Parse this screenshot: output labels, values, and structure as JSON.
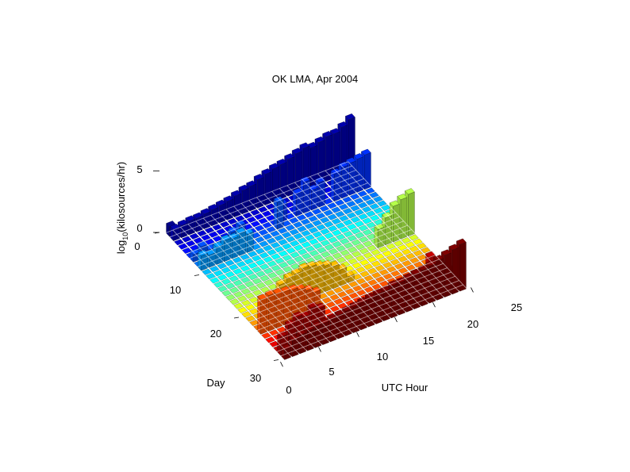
{
  "chart_data": {
    "type": "bar3",
    "title": "OK LMA, Apr 2004",
    "xlabel": "UTC Hour",
    "ylabel": "Day",
    "zlabel_main": "log",
    "zlabel_sub": "10",
    "zlabel_rest": "(kilosources/hr)",
    "x_ticks": [
      "0",
      "5",
      "10",
      "15",
      "20",
      "25"
    ],
    "y_ticks": [
      "0",
      "10",
      "20",
      "30"
    ],
    "z_ticks": [
      "0",
      "5"
    ],
    "xlim": [
      0,
      25
    ],
    "ylim": [
      0,
      30
    ],
    "zlim": [
      0,
      5
    ],
    "hours": [
      1,
      2,
      3,
      4,
      5,
      6,
      7,
      8,
      9,
      10,
      11,
      12,
      13,
      14,
      15,
      16,
      17,
      18,
      19,
      20,
      21,
      22,
      23,
      24
    ],
    "days": [
      1,
      2,
      3,
      4,
      5,
      6,
      7,
      8,
      9,
      10,
      11,
      12,
      13,
      14,
      15,
      16,
      17,
      18,
      19,
      20,
      21,
      22,
      23,
      24,
      25,
      26,
      27,
      28,
      29,
      30
    ],
    "rows": [
      [
        0.8,
        0,
        0,
        0,
        0,
        0,
        0,
        0,
        0,
        0,
        0,
        0,
        0,
        0,
        0,
        0,
        0,
        0,
        0,
        0,
        0,
        0,
        0,
        0
      ],
      [
        0.9,
        1.0,
        1.1,
        1.1,
        1.2,
        1.3,
        1.4,
        1.5,
        1.7,
        1.9,
        2.0,
        2.3,
        2.5,
        2.7,
        2.8,
        3.0,
        3.2,
        3.4,
        3.2,
        3.4,
        3.6,
        3.6,
        3.9,
        4.3
      ],
      [
        0,
        0,
        0,
        0,
        0,
        0,
        0,
        0,
        0,
        0,
        0,
        0,
        0,
        0,
        0,
        0,
        0,
        0,
        0,
        0,
        0,
        0,
        0,
        0
      ],
      [
        0,
        0,
        0,
        0,
        0,
        0,
        0,
        0,
        0,
        0,
        0,
        0,
        0,
        0,
        0,
        0,
        0,
        0,
        0,
        0,
        0,
        0,
        0,
        0
      ],
      [
        0,
        0,
        0,
        0,
        0,
        0,
        0,
        0,
        0,
        0,
        0,
        0,
        0,
        0,
        0,
        0,
        0,
        0,
        0,
        0,
        0,
        0,
        0,
        0
      ],
      [
        0,
        0,
        0,
        0,
        0,
        0,
        0,
        0,
        0,
        0,
        0,
        0,
        1.4,
        0,
        1.8,
        2.5,
        1.6,
        2.0,
        0,
        2.2,
        2.5,
        2.6,
        2.7,
        2.8
      ],
      [
        0.6,
        1.0,
        0.5,
        0.3,
        0.8,
        1.2,
        1.5,
        0,
        0,
        0,
        0,
        2.2,
        0,
        0,
        0,
        0,
        0,
        0,
        0,
        0,
        0,
        0,
        0,
        0
      ],
      [
        0,
        0,
        0,
        0,
        0,
        0,
        0,
        0,
        0,
        0,
        0,
        0,
        0,
        0,
        0,
        0,
        0,
        0,
        0,
        0,
        0,
        0,
        0,
        0
      ],
      [
        1.2,
        1.0,
        1.4,
        1.7,
        1.6,
        1.8,
        1.5,
        0,
        0,
        0,
        0,
        0,
        0,
        0,
        0,
        0,
        0,
        0,
        0,
        0,
        0,
        0,
        0,
        0
      ],
      [
        0,
        0,
        0,
        0,
        0,
        0,
        0,
        0,
        0,
        0,
        0,
        0,
        0,
        0,
        0,
        0,
        0,
        0,
        0,
        0,
        0,
        0,
        0,
        0
      ],
      [
        0,
        0,
        0,
        0,
        0,
        0,
        0,
        0,
        0,
        0,
        0,
        0,
        0,
        0,
        0,
        0,
        0,
        0,
        0,
        0,
        0,
        0,
        0,
        0
      ],
      [
        0,
        0,
        0,
        0,
        0,
        0,
        0,
        0,
        0,
        0,
        0,
        0,
        0,
        0,
        0,
        0,
        0,
        0,
        0,
        0,
        0,
        0,
        0,
        0
      ],
      [
        0,
        0,
        0,
        0,
        0,
        0,
        0,
        0,
        0,
        0,
        0,
        0,
        0,
        0,
        0,
        0,
        0,
        0,
        0,
        0,
        0,
        0,
        0,
        0
      ],
      [
        0,
        0,
        0,
        0,
        0,
        0,
        0,
        0,
        0,
        0,
        0,
        0,
        0,
        0,
        0,
        0,
        0,
        0,
        0,
        0,
        0,
        0,
        0,
        0
      ],
      [
        0,
        0,
        0,
        0,
        0,
        0,
        0,
        0,
        0,
        0,
        0,
        0,
        0,
        0,
        0,
        0,
        0,
        0,
        0,
        0,
        0,
        0,
        0,
        0
      ],
      [
        0,
        0,
        0,
        0,
        0,
        0,
        0,
        0,
        0,
        0,
        0,
        0,
        0,
        0,
        0,
        0,
        0,
        0,
        0,
        0,
        0,
        0,
        0,
        0
      ],
      [
        0,
        0,
        0,
        0,
        0,
        0,
        0,
        0,
        0,
        0,
        0,
        0,
        0,
        0,
        0,
        0,
        0,
        0,
        0,
        1.5,
        2.2,
        2.9,
        3.2,
        3.4
      ],
      [
        0,
        0,
        0,
        0,
        0,
        0,
        0,
        0,
        0,
        0,
        0,
        0,
        0,
        0,
        0,
        0,
        0,
        0,
        0,
        0,
        0,
        0,
        0,
        0
      ],
      [
        0,
        0,
        0,
        0,
        0,
        0,
        0,
        0,
        0,
        0,
        0,
        0,
        0,
        0,
        0,
        0,
        0,
        0,
        0,
        0,
        0,
        0,
        0,
        0
      ],
      [
        0,
        0,
        0,
        0,
        0,
        0,
        0,
        0,
        0,
        0,
        0,
        0,
        0,
        0,
        0,
        0,
        0,
        0,
        0,
        0,
        0,
        0,
        0,
        0
      ],
      [
        0,
        0,
        0,
        0,
        2.0,
        2.3,
        2.4,
        2.6,
        2.5,
        2.3,
        2.1,
        1.8,
        1.3,
        0.5,
        0,
        0,
        0,
        0,
        0,
        0,
        0,
        0,
        0,
        0
      ],
      [
        0,
        0,
        0,
        0,
        0,
        0,
        0,
        0,
        0,
        0,
        0,
        0,
        0,
        0,
        0,
        0,
        0,
        0,
        0,
        0,
        0,
        0,
        0,
        0
      ],
      [
        0,
        0,
        0,
        0,
        0,
        0,
        0,
        0,
        0,
        0,
        0,
        0,
        0,
        0,
        0,
        0,
        0,
        0,
        0,
        0,
        0,
        0,
        0,
        0
      ],
      [
        2.8,
        2.9,
        2.8,
        2.7,
        2.6,
        2.4,
        2.1,
        1.7,
        0,
        0,
        0,
        0,
        0,
        0,
        0,
        0,
        0,
        0,
        0,
        0,
        0,
        0,
        0,
        0
      ],
      [
        0,
        0,
        0,
        0,
        0,
        0,
        0,
        0,
        0,
        0,
        0,
        0,
        0,
        0,
        0,
        0,
        0,
        0,
        0,
        0,
        0,
        0,
        0,
        0
      ],
      [
        0,
        0,
        0,
        0,
        0,
        0,
        0,
        0,
        0,
        0,
        0,
        0,
        0,
        0,
        0,
        0,
        0,
        0,
        0,
        0,
        0,
        0,
        0,
        0
      ],
      [
        0,
        0,
        0,
        0,
        0,
        0,
        0,
        0,
        0,
        0,
        0,
        0,
        0,
        0,
        0,
        0,
        0,
        0,
        0,
        0,
        0,
        0,
        0,
        0
      ],
      [
        0,
        0,
        0,
        0,
        0,
        0,
        0,
        0,
        0,
        0,
        0,
        0,
        0,
        0,
        0,
        0,
        0,
        0,
        0,
        0,
        2.8,
        2.2,
        1.5,
        1.0
      ],
      [
        1.5,
        2.2,
        2.6,
        2.4,
        2.9,
        2.6,
        0,
        0,
        0,
        0,
        0,
        0,
        0,
        0,
        0,
        0,
        0,
        0,
        0,
        0,
        0,
        0,
        0,
        0
      ],
      [
        0.8,
        1.3,
        1.5,
        1.6,
        1.7,
        1.7,
        1.8,
        1.9,
        2.0,
        2.1,
        2.2,
        2.3,
        2.4,
        2.4,
        2.6,
        2.6,
        2.7,
        2.8,
        2.9,
        3.0,
        3.2,
        3.4,
        3.6,
        3.8
      ]
    ],
    "colormap": [
      "#00008f",
      "#0000ff",
      "#0080ff",
      "#00ffff",
      "#80ff80",
      "#ffff00",
      "#ff8000",
      "#ff0000",
      "#800000"
    ],
    "grid_color": "#ffffff"
  }
}
